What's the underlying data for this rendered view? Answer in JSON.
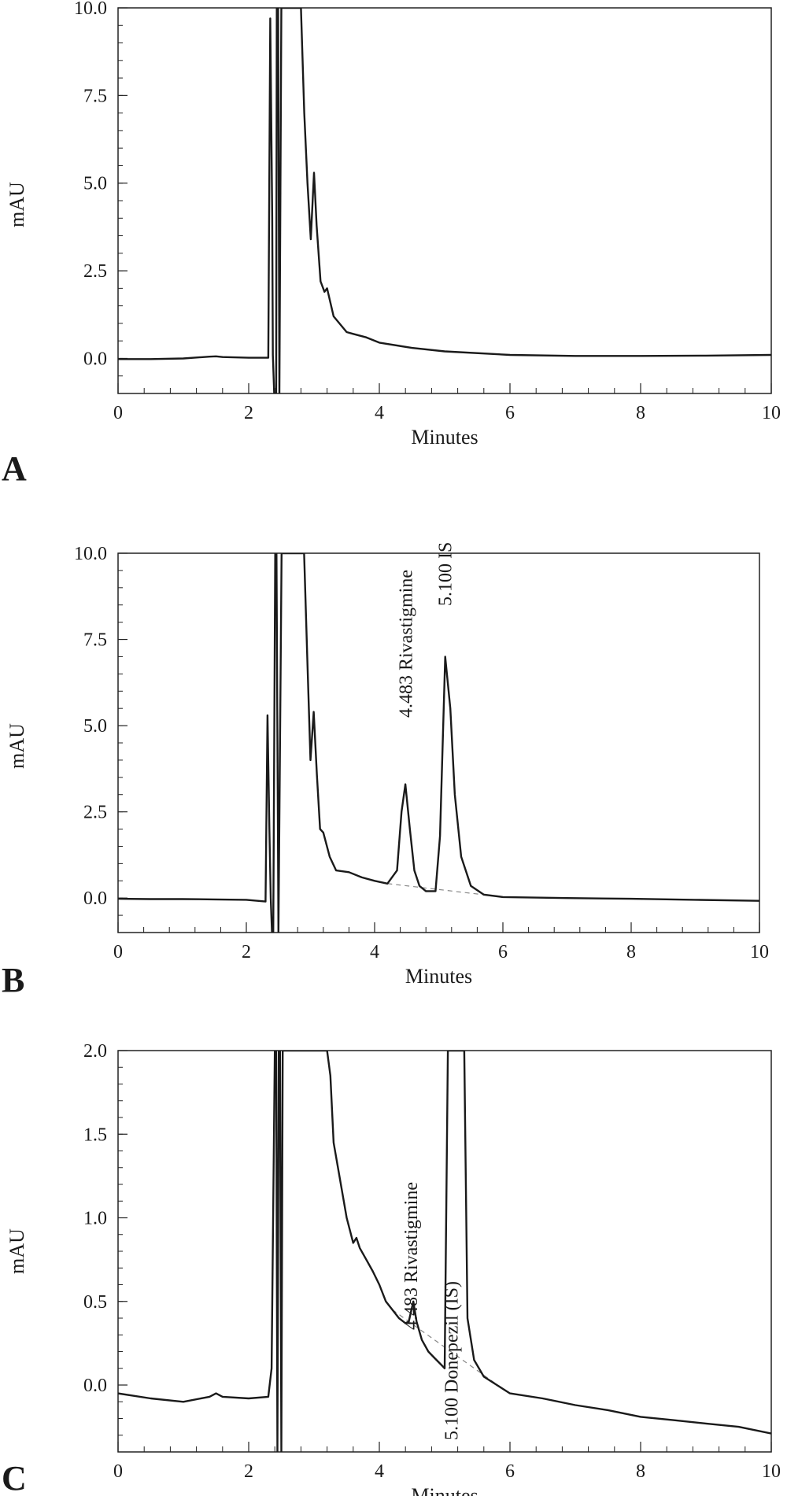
{
  "chart_data": [
    {
      "type": "line",
      "panel_label": "A",
      "xlabel": "Minutes",
      "ylabel": "mAU",
      "xlim": [
        0,
        10
      ],
      "ylim": [
        -1.0,
        10.0
      ],
      "x_ticks": [
        "0",
        "2",
        "4",
        "6",
        "8",
        "10"
      ],
      "y_ticks": [
        "0.0",
        "2.5",
        "5.0",
        "7.5",
        "10.0"
      ],
      "grid": false,
      "series": [
        {
          "x": [
            0,
            0.5,
            1.0,
            1.4,
            1.5,
            1.6,
            2.0,
            2.3,
            2.33,
            2.36,
            2.37,
            2.39,
            2.42,
            2.43,
            2.45,
            2.47,
            2.5,
            2.8,
            2.85,
            2.9,
            2.95,
            3.0,
            3.04,
            3.1,
            3.16,
            3.2,
            3.3,
            3.5,
            3.6,
            3.8,
            4.0,
            4.5,
            5.0,
            6.0,
            7.0,
            8.0,
            9.0,
            10.0
          ],
          "y": [
            -0.02,
            -0.02,
            0.0,
            0.05,
            0.06,
            0.04,
            0.02,
            0.02,
            9.7,
            4.0,
            0.1,
            -1.0,
            -1.0,
            10.0,
            10.0,
            -1.0,
            10.0,
            10.0,
            7.0,
            5.0,
            3.4,
            5.3,
            3.8,
            2.2,
            1.9,
            2.0,
            1.2,
            0.75,
            0.7,
            0.6,
            0.45,
            0.3,
            0.2,
            0.1,
            0.07,
            0.07,
            0.08,
            0.1
          ]
        }
      ],
      "annotations": []
    },
    {
      "type": "line",
      "panel_label": "B",
      "xlabel": "Minutes",
      "ylabel": "mAU",
      "xlim": [
        0,
        10
      ],
      "ylim": [
        -1.0,
        10.0
      ],
      "x_ticks": [
        "0",
        "2",
        "4",
        "6",
        "8",
        "10"
      ],
      "y_ticks": [
        "0.0",
        "2.5",
        "5.0",
        "7.5",
        "10.0"
      ],
      "grid": false,
      "series": [
        {
          "x": [
            0,
            0.5,
            1.0,
            1.5,
            2.0,
            2.3,
            2.33,
            2.36,
            2.38,
            2.4,
            2.42,
            2.45,
            2.47,
            2.5,
            2.55,
            2.9,
            2.95,
            3.0,
            3.05,
            3.1,
            3.15,
            3.2,
            3.3,
            3.4,
            3.6,
            3.8,
            4.0,
            4.2,
            4.35,
            4.42,
            4.48,
            4.55,
            4.62,
            4.7,
            4.8,
            4.95,
            5.02,
            5.1,
            5.18,
            5.25,
            5.35,
            5.5,
            5.7,
            6.0,
            7.0,
            8.0,
            9.0,
            10.0
          ],
          "y": [
            -0.02,
            -0.03,
            -0.03,
            -0.04,
            -0.05,
            -0.1,
            5.3,
            2.0,
            0.0,
            -1.0,
            -1.0,
            10.0,
            10.0,
            -1.0,
            10.0,
            10.0,
            7.0,
            4.0,
            5.4,
            3.6,
            2.0,
            1.9,
            1.2,
            0.8,
            0.75,
            0.6,
            0.5,
            0.42,
            0.8,
            2.5,
            3.3,
            2.0,
            0.8,
            0.35,
            0.2,
            0.2,
            1.8,
            7.0,
            5.5,
            3.0,
            1.2,
            0.35,
            0.1,
            0.03,
            0.0,
            -0.02,
            -0.05,
            -0.08
          ]
        }
      ],
      "annotations": [
        {
          "x": 4.483,
          "text": "4.483  Rivastigmine"
        },
        {
          "x": 5.1,
          "text": "5.100  IS"
        }
      ]
    },
    {
      "type": "line",
      "panel_label": "C",
      "xlabel": "Minutes",
      "ylabel": "mAU",
      "xlim": [
        0,
        10
      ],
      "ylim": [
        -0.4,
        2.0
      ],
      "x_ticks": [
        "0",
        "2",
        "4",
        "6",
        "8",
        "10"
      ],
      "y_ticks": [
        "0.0",
        "0.5",
        "1.0",
        "1.5",
        "2.0"
      ],
      "grid": false,
      "series": [
        {
          "x": [
            0,
            0.5,
            1.0,
            1.4,
            1.5,
            1.6,
            2.0,
            2.3,
            2.35,
            2.4,
            2.42,
            2.44,
            2.46,
            2.48,
            2.5,
            2.52,
            3.2,
            3.25,
            3.3,
            3.5,
            3.6,
            3.65,
            3.7,
            3.8,
            3.9,
            4.0,
            4.1,
            4.2,
            4.3,
            4.4,
            4.45,
            4.52,
            4.57,
            4.65,
            4.75,
            4.85,
            4.95,
            5.0,
            5.05,
            5.3,
            5.35,
            5.45,
            5.6,
            5.8,
            6.0,
            6.5,
            7.0,
            7.5,
            8.0,
            8.5,
            9.0,
            9.5,
            10.0
          ],
          "y": [
            -0.05,
            -0.08,
            -0.1,
            -0.07,
            -0.05,
            -0.07,
            -0.08,
            -0.07,
            0.1,
            2.0,
            2.0,
            -0.4,
            2.0,
            2.0,
            -0.4,
            2.0,
            2.0,
            1.85,
            1.45,
            1.0,
            0.85,
            0.88,
            0.82,
            0.75,
            0.68,
            0.6,
            0.5,
            0.45,
            0.4,
            0.37,
            0.38,
            0.5,
            0.38,
            0.27,
            0.2,
            0.16,
            0.12,
            0.1,
            2.0,
            2.0,
            0.4,
            0.15,
            0.05,
            0.0,
            -0.05,
            -0.08,
            -0.12,
            -0.15,
            -0.19,
            -0.21,
            -0.23,
            -0.25,
            -0.29
          ]
        }
      ],
      "annotations": [
        {
          "x": 4.483,
          "text": "4.483  Rivastigmine"
        },
        {
          "x": 5.1,
          "text": "5.100  Donepezil (IS)"
        }
      ]
    }
  ]
}
